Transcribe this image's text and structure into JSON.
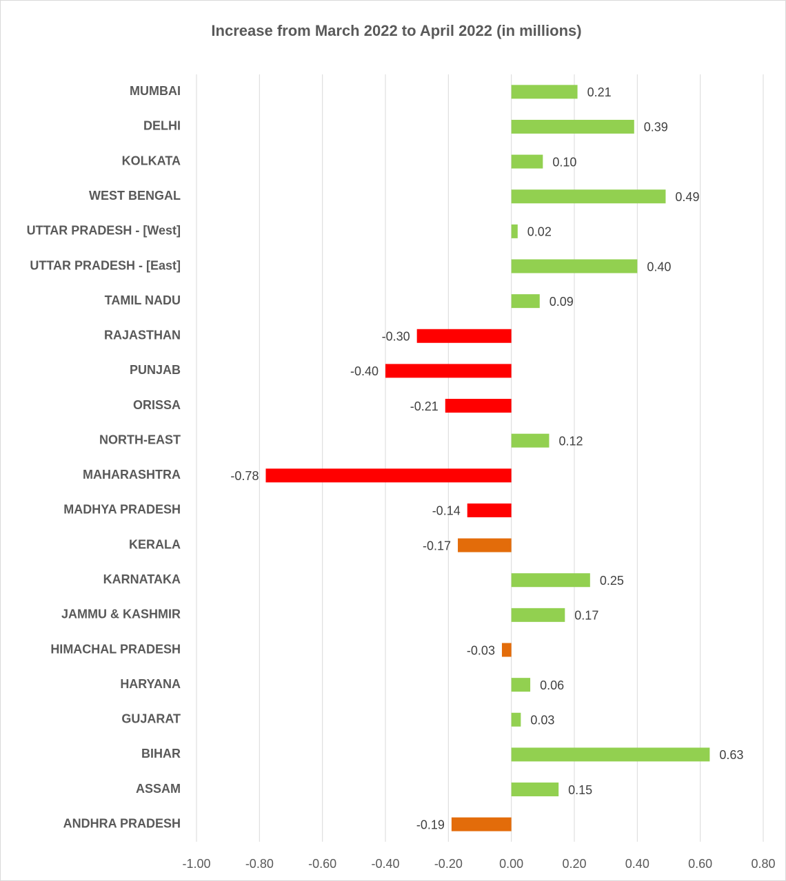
{
  "chart_data": {
    "type": "bar",
    "orientation": "horizontal",
    "title": "Increase from March 2022 to April 2022 (in millions)",
    "categories": [
      "MUMBAI",
      "DELHI",
      "KOLKATA",
      "WEST BENGAL",
      "UTTAR PRADESH - [West]",
      "UTTAR PRADESH - [East]",
      "TAMIL NADU",
      "RAJASTHAN",
      "PUNJAB",
      "ORISSA",
      "NORTH-EAST",
      "MAHARASHTRA",
      "MADHYA PRADESH",
      "KERALA",
      "KARNATAKA",
      "JAMMU & KASHMIR",
      "HIMACHAL PRADESH",
      "HARYANA",
      "GUJARAT",
      "BIHAR",
      "ASSAM",
      "ANDHRA PRADESH"
    ],
    "values": [
      0.21,
      0.39,
      0.1,
      0.49,
      0.02,
      0.4,
      0.09,
      -0.3,
      -0.4,
      -0.21,
      0.12,
      -0.78,
      -0.14,
      -0.17,
      0.25,
      0.17,
      -0.03,
      0.06,
      0.03,
      0.63,
      0.15,
      -0.19
    ],
    "value_labels": [
      "0.21",
      "0.39",
      "0.10",
      "0.49",
      "0.02",
      "0.40",
      "0.09",
      "-0.30",
      "-0.40",
      "-0.21",
      "0.12",
      "-0.78",
      "-0.14",
      "-0.17",
      "0.25",
      "0.17",
      "-0.03",
      "0.06",
      "0.03",
      "0.63",
      "0.15",
      "-0.19"
    ],
    "colors": [
      "#92d050",
      "#92d050",
      "#92d050",
      "#92d050",
      "#92d050",
      "#92d050",
      "#92d050",
      "#ff0000",
      "#ff0000",
      "#ff0000",
      "#92d050",
      "#ff0000",
      "#ff0000",
      "#e36c0a",
      "#92d050",
      "#92d050",
      "#e36c0a",
      "#92d050",
      "#92d050",
      "#92d050",
      "#92d050",
      "#e36c0a"
    ],
    "xlim": [
      -1,
      0.8
    ],
    "xticks": [
      {
        "value": -1,
        "label": "-1.00"
      },
      {
        "value": -0.8,
        "label": "-0.80"
      },
      {
        "value": -0.6,
        "label": "-0.60"
      },
      {
        "value": -0.4,
        "label": "-0.40"
      },
      {
        "value": -0.2,
        "label": "-0.20"
      },
      {
        "value": 0,
        "label": "0.00"
      },
      {
        "value": 0.2,
        "label": "0.20"
      },
      {
        "value": 0.4,
        "label": "0.40"
      },
      {
        "value": 0.6,
        "label": "0.60"
      },
      {
        "value": 0.8,
        "label": "0.80"
      }
    ],
    "grid": true
  }
}
